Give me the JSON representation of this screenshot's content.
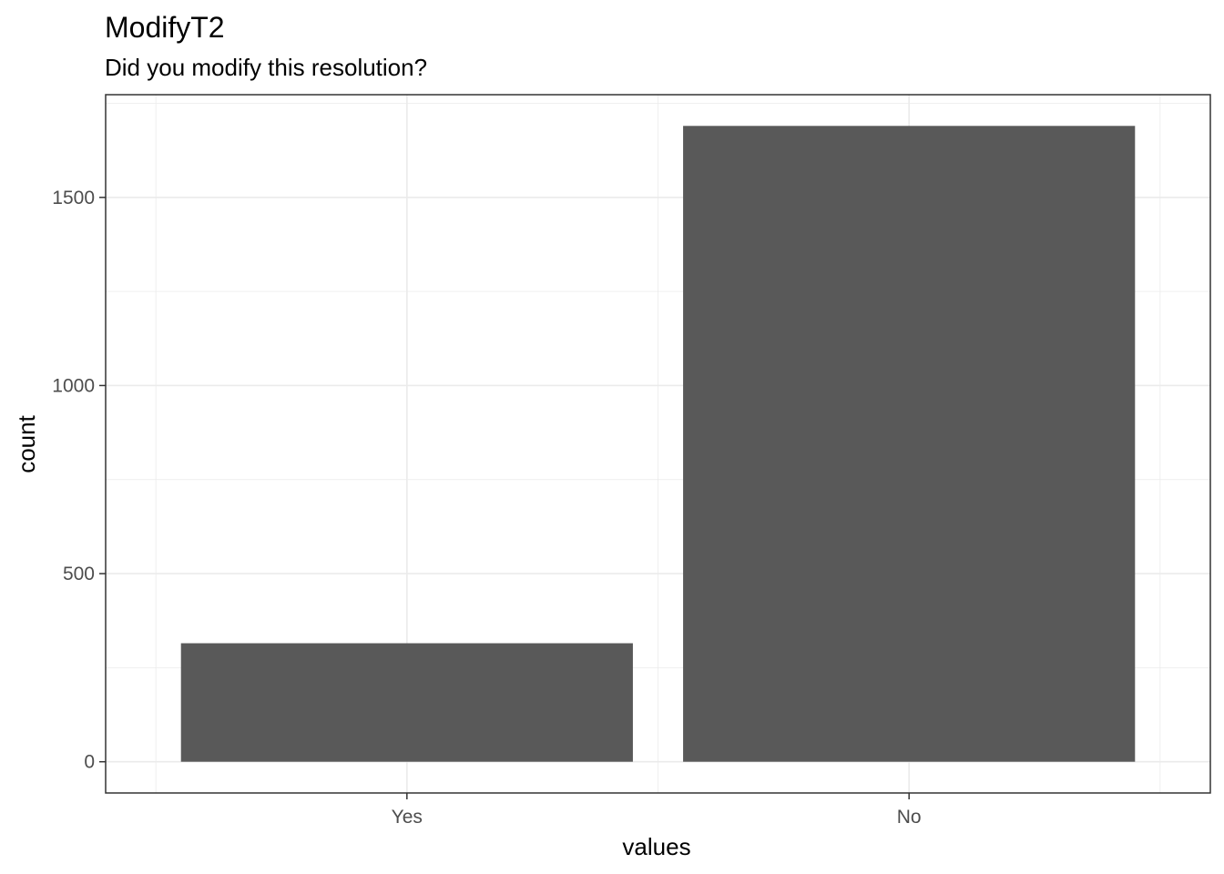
{
  "chart_data": {
    "type": "bar",
    "title": "ModifyT2",
    "subtitle": "Did you modify this resolution?",
    "xlabel": "values",
    "ylabel": "count",
    "categories": [
      "Yes",
      "No"
    ],
    "values": [
      315,
      1690
    ],
    "ylim": [
      -83,
      1773
    ],
    "yticks": [
      0,
      500,
      1000,
      1500
    ],
    "ytick_labels": [
      "0",
      "500",
      "1000",
      "1500"
    ],
    "grid": true,
    "bar_color": "#595959",
    "grid_color": "#ebebeb",
    "panel_border_color": "#333333"
  }
}
